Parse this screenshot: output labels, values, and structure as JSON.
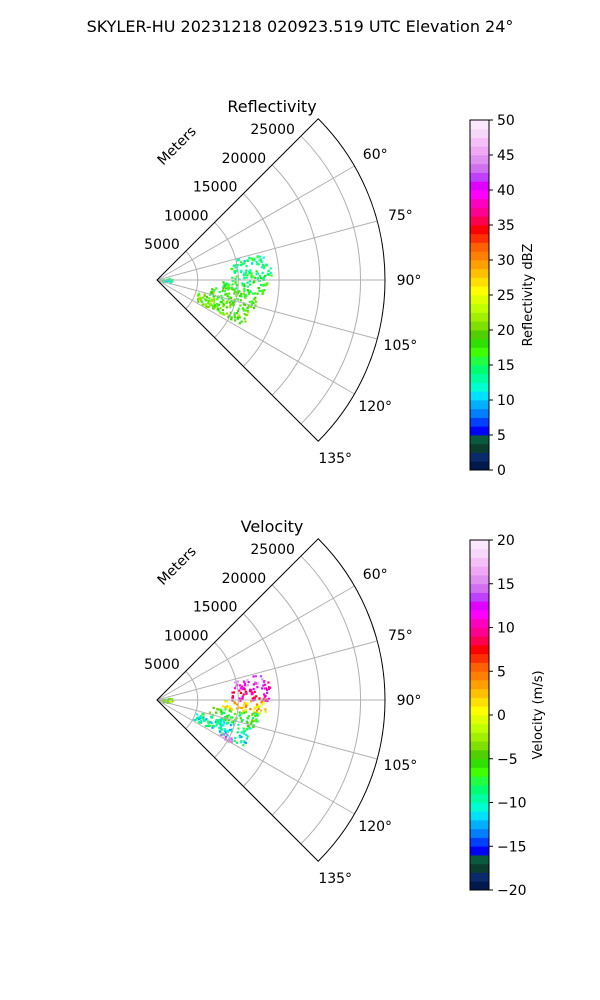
{
  "figure": {
    "suptitle": "SKYLER-HU  20231218  020923.519 UTC Elevation 24°"
  },
  "chart_data": [
    {
      "type": "polar-sector (radar PPI)",
      "title": "Reflectivity",
      "radial_label": "Meters",
      "radial_ticks": [
        "5000",
        "10000",
        "15000",
        "20000",
        "25000"
      ],
      "radial_values": [
        5000,
        10000,
        15000,
        20000,
        25000
      ],
      "rmax": 28000,
      "angle_ticks": [
        "60°",
        "75°",
        "90°",
        "105°",
        "120°",
        "135°"
      ],
      "angle_values_deg": [
        60,
        75,
        90,
        105,
        120,
        135
      ],
      "sector_deg": [
        45,
        135
      ],
      "colorbar": {
        "label": "Reflectivity dBZ",
        "ticks": [
          "0",
          "5",
          "10",
          "15",
          "20",
          "25",
          "30",
          "35",
          "40",
          "45",
          "50"
        ],
        "min": 0,
        "max": 50,
        "colors": [
          "#001a4d",
          "#0a2a6b",
          "#0b3d2e",
          "#0a5a40",
          "#0000ff",
          "#0040ff",
          "#0080ff",
          "#00b0ff",
          "#00e0ff",
          "#00ffd0",
          "#00ffa0",
          "#00ff70",
          "#20ff40",
          "#40ff00",
          "#30e000",
          "#50d000",
          "#80e000",
          "#a0f000",
          "#c0ff00",
          "#e0ff00",
          "#ffff00",
          "#ffe000",
          "#ffc000",
          "#ffa000",
          "#ff8000",
          "#ff6000",
          "#ff3000",
          "#ff0000",
          "#ff0050",
          "#ff0090",
          "#ff00c0",
          "#ff00ff",
          "#e000ff",
          "#c040ff",
          "#d070f0",
          "#e090f0",
          "#f0a8f5",
          "#f5c0f8",
          "#f8d8fa",
          "#fce8fc"
        ]
      },
      "echo_regions": [
        {
          "az_deg": [
            75,
            80
          ],
          "range_m": [
            9000,
            13500
          ],
          "value": 14
        },
        {
          "az_deg": [
            80,
            90
          ],
          "range_m": [
            9000,
            14000
          ],
          "value": 15
        },
        {
          "az_deg": [
            90,
            97
          ],
          "range_m": [
            8000,
            13500
          ],
          "value": 16
        },
        {
          "az_deg": [
            97,
            106
          ],
          "range_m": [
            6500,
            12500
          ],
          "value": 18
        },
        {
          "az_deg": [
            106,
            118
          ],
          "range_m": [
            5000,
            12000
          ],
          "value": 19
        },
        {
          "az_deg": [
            80,
            100
          ],
          "range_m": [
            500,
            1800
          ],
          "value": 13
        }
      ]
    },
    {
      "type": "polar-sector (radar PPI)",
      "title": "Velocity",
      "radial_label": "Meters",
      "radial_ticks": [
        "5000",
        "10000",
        "15000",
        "20000",
        "25000"
      ],
      "radial_values": [
        5000,
        10000,
        15000,
        20000,
        25000
      ],
      "rmax": 28000,
      "angle_ticks": [
        "60°",
        "75°",
        "90°",
        "105°",
        "120°",
        "135°"
      ],
      "angle_values_deg": [
        60,
        75,
        90,
        105,
        120,
        135
      ],
      "sector_deg": [
        45,
        135
      ],
      "colorbar": {
        "label": "Velocity (m/s)",
        "ticks": [
          "−20",
          "−15",
          "−10",
          "−5",
          "0",
          "5",
          "10",
          "15",
          "20"
        ],
        "min": -20,
        "max": 20,
        "colors": [
          "#001a4d",
          "#0a2a6b",
          "#0b3d2e",
          "#0a5a40",
          "#0000ff",
          "#0040ff",
          "#0080ff",
          "#00b0ff",
          "#00e0ff",
          "#00ffd0",
          "#00ffa0",
          "#00ff70",
          "#20ff40",
          "#40ff00",
          "#30e000",
          "#50d000",
          "#80e000",
          "#a0f000",
          "#c0ff00",
          "#e0ff00",
          "#ffff00",
          "#ffe000",
          "#ffc000",
          "#ffa000",
          "#ff8000",
          "#ff6000",
          "#ff3000",
          "#ff0000",
          "#ff0050",
          "#ff0090",
          "#ff00c0",
          "#ff00ff",
          "#e000ff",
          "#c040ff",
          "#d070f0",
          "#e090f0",
          "#f0a8f5",
          "#f5c0f8",
          "#f8d8fa",
          "#fce8fc"
        ]
      },
      "echo_regions": [
        {
          "az_deg": [
            75,
            80
          ],
          "range_m": [
            9500,
            13500
          ],
          "value": 14
        },
        {
          "az_deg": [
            80,
            90
          ],
          "range_m": [
            9000,
            14000
          ],
          "value": 10
        },
        {
          "az_deg": [
            90,
            97
          ],
          "range_m": [
            8000,
            13500
          ],
          "value": 2
        },
        {
          "az_deg": [
            97,
            106
          ],
          "range_m": [
            6500,
            12500
          ],
          "value": -6
        },
        {
          "az_deg": [
            106,
            118
          ],
          "range_m": [
            5000,
            12000
          ],
          "value": -10
        },
        {
          "az_deg": [
            115,
            120
          ],
          "range_m": [
            8500,
            10500
          ],
          "value": 16
        },
        {
          "az_deg": [
            80,
            100
          ],
          "range_m": [
            500,
            1800
          ],
          "value": -3
        }
      ]
    }
  ]
}
